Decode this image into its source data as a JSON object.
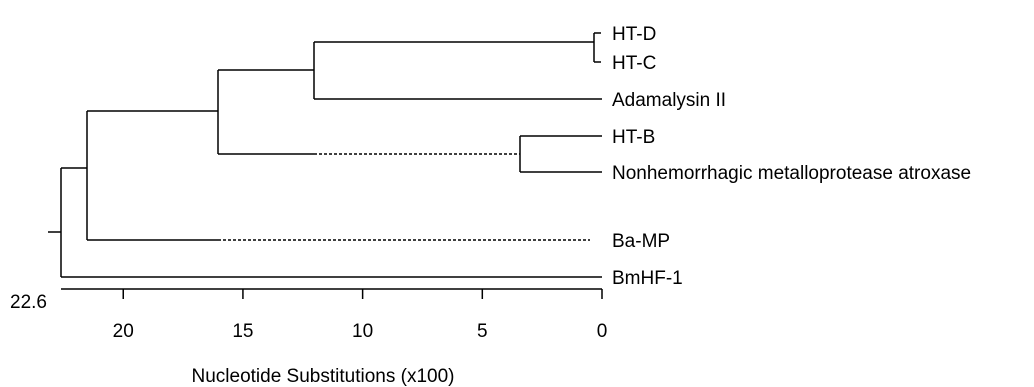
{
  "tree": {
    "leaves": [
      "HT-D",
      "HT-C",
      "Adamalysin II",
      "HT-B",
      "Nonhemorrhagic metalloprotease atroxase",
      "Ba-MP",
      "BmHF-1"
    ]
  },
  "axis": {
    "scale_label": "22.6",
    "ticks": [
      "20",
      "15",
      "10",
      "5",
      "0"
    ],
    "tick_values": [
      20,
      15,
      10,
      5,
      0
    ],
    "range": [
      22.6,
      0
    ],
    "title": "Nucleotide Substitutions (x100)"
  }
}
